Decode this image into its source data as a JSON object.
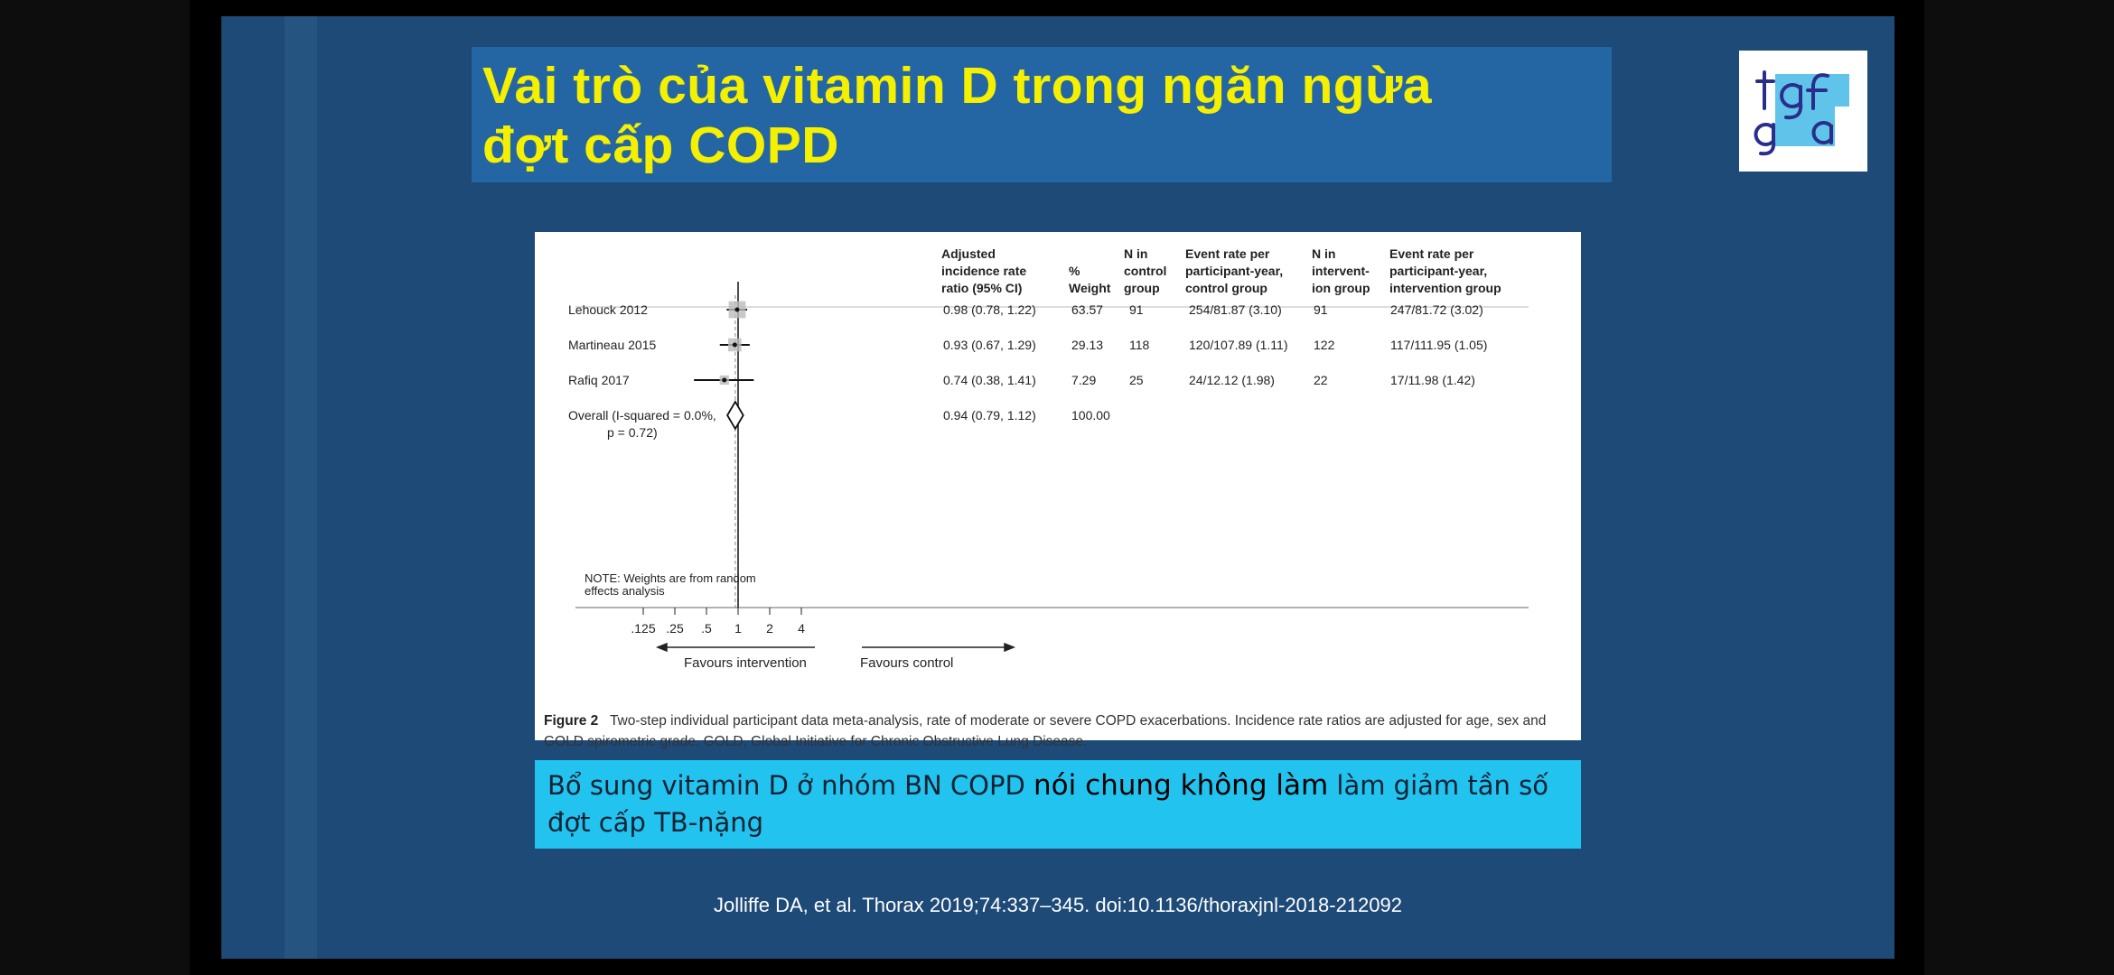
{
  "slide": {
    "title_line1": "Vai trò của vitamin D trong ngăn ngừa",
    "title_line2": "đợt cấp COPD",
    "citation": "Jolliffe DA, et al. Thorax 2019;74:337–345. doi:10.1136/thoraxjnl-2018-212092"
  },
  "logo": {
    "letters": "tgfga"
  },
  "conclusion": {
    "part1": "Bổ sung vitamin D ở nhóm BN COPD ",
    "emphasis": "nói chung không làm",
    "part2": " làm giảm tần số đợt cấp TB-nặng"
  },
  "figure": {
    "caption_label": "Figure 2",
    "caption_text": "Two-step individual participant data meta-analysis, rate of moderate or severe COPD exacerbations. Incidence rate ratios are adjusted for age, sex and GOLD spirometric grade. GOLD, Global Initiative for Chronic Obstructive Lung Disease.",
    "headers": {
      "irr": [
        "Adjusted",
        "incidence rate",
        "ratio (95% CI)"
      ],
      "weight": [
        "%",
        "Weight"
      ],
      "n_control": [
        "N in",
        "control",
        "group"
      ],
      "event_control": [
        "Event rate per",
        "participant-year,",
        "control group"
      ],
      "n_intervention": [
        "N in",
        "intervent-",
        "ion group"
      ],
      "event_intervention": [
        "Event rate per",
        "participant-year,",
        "intervention group"
      ]
    },
    "note": [
      "NOTE: Weights are from random",
      "effects analysis"
    ],
    "favours_left": "Favours intervention",
    "favours_right": "Favours control"
  },
  "chart_data": {
    "type": "forest",
    "scale": "log",
    "x_ticks": [
      ".125",
      ".25",
      ".5",
      "1",
      "2",
      "4"
    ],
    "x_tick_values": [
      0.125,
      0.25,
      0.5,
      1,
      2,
      4
    ],
    "reference_line": 1,
    "studies": [
      {
        "name": "Lehouck 2012",
        "irr": 0.98,
        "lo": 0.78,
        "hi": 1.22,
        "ci_text": "0.98 (0.78, 1.22)",
        "weight": "63.57",
        "n_control": "91",
        "event_control": "254/81.87 (3.10)",
        "n_intervention": "91",
        "event_intervention": "247/81.72 (3.02)"
      },
      {
        "name": "Martineau 2015",
        "irr": 0.93,
        "lo": 0.67,
        "hi": 1.29,
        "ci_text": "0.93 (0.67, 1.29)",
        "weight": "29.13",
        "n_control": "118",
        "event_control": "120/107.89 (1.11)",
        "n_intervention": "122",
        "event_intervention": "117/111.95 (1.05)"
      },
      {
        "name": "Rafiq 2017",
        "irr": 0.74,
        "lo": 0.38,
        "hi": 1.41,
        "ci_text": "0.74 (0.38, 1.41)",
        "weight": "7.29",
        "n_control": "25",
        "event_control": "24/12.12 (1.98)",
        "n_intervention": "22",
        "event_intervention": "17/11.98 (1.42)"
      }
    ],
    "overall": {
      "label_line1": "Overall  (I-squared = 0.0%,",
      "label_line2": "p = 0.72)",
      "irr": 0.94,
      "lo": 0.79,
      "hi": 1.12,
      "ci_text": "0.94 (0.79, 1.12)",
      "weight": "100.00"
    }
  }
}
